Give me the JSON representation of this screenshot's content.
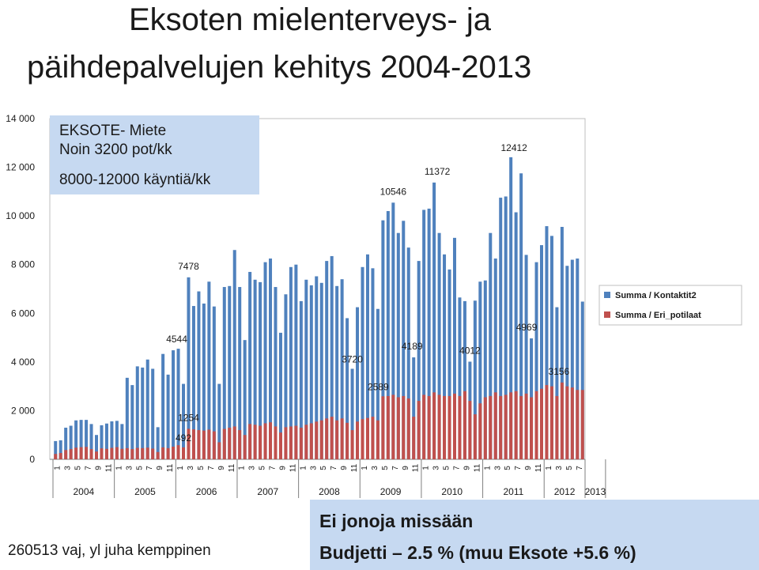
{
  "title": {
    "line1": "Eksoten mielenterveys- ja",
    "line2": "päihdepalvelujen kehitys 2004-2013"
  },
  "callout": {
    "line1": "EKSOTE- Miete",
    "line2": "Noin 3200 pot/kk",
    "line3": "8000-12000 käyntiä/kk"
  },
  "footer": {
    "left": "260513 vaj, yl juha kemppinen",
    "box_line1": "Ei jonoja missään",
    "box_line2": "Budjetti – 2.5 % (muu Eksote +5.6 %)"
  },
  "chart_data": {
    "type": "bar",
    "ylim": [
      0,
      14000
    ],
    "yticks": [
      "0",
      "2 000",
      "4 000",
      "6 000",
      "8 000",
      "10 000",
      "12 000",
      "14 000"
    ],
    "grid": false,
    "legend_position": "right",
    "years": [
      "2004",
      "2005",
      "2006",
      "2007",
      "2008",
      "2009",
      "2010",
      "2011",
      "2012",
      "2013"
    ],
    "month_labels": [
      "1",
      "3",
      "5",
      "7",
      "9",
      "11"
    ],
    "colors": {
      "series1": "#4f81bd",
      "series2": "#c0504d"
    },
    "series": [
      {
        "name": "Summa / Kontaktit2",
        "values": [
          750,
          780,
          1300,
          1380,
          1600,
          1620,
          1620,
          1450,
          1000,
          1400,
          1470,
          1560,
          1580,
          1450,
          3350,
          3050,
          3820,
          3770,
          4100,
          3720,
          1320,
          4330,
          3480,
          4480,
          4544,
          3100,
          7478,
          6300,
          6900,
          6400,
          7300,
          6280,
          3100,
          7080,
          7120,
          8600,
          7080,
          4900,
          7700,
          7380,
          7280,
          8100,
          8250,
          7080,
          5200,
          6780,
          7900,
          8000,
          6500,
          7380,
          7150,
          7520,
          7250,
          8150,
          8350,
          7120,
          7400,
          5800,
          3720,
          6250,
          7900,
          8420,
          7850,
          6180,
          9820,
          10200,
          10546,
          9300,
          9800,
          8700,
          4189,
          8150,
          10250,
          10300,
          11372,
          9300,
          8420,
          7800,
          9100,
          6650,
          6500,
          4012,
          6520,
          7300,
          7350,
          9300,
          8250,
          10750,
          10800,
          12412,
          10150,
          11750,
          8400,
          4969,
          8100,
          8800,
          9580,
          9180,
          6250,
          9550,
          7950,
          8200,
          8250,
          6480
        ]
      },
      {
        "name": "Summa / Eri_potilaat",
        "values": [
          220,
          260,
          380,
          420,
          480,
          500,
          510,
          420,
          320,
          450,
          430,
          470,
          500,
          430,
          460,
          420,
          470,
          460,
          480,
          440,
          300,
          490,
          460,
          520,
          580,
          492,
          1254,
          1230,
          1200,
          1180,
          1220,
          1150,
          700,
          1250,
          1300,
          1350,
          1200,
          1000,
          1450,
          1420,
          1380,
          1480,
          1520,
          1350,
          1100,
          1320,
          1350,
          1380,
          1300,
          1420,
          1480,
          1550,
          1600,
          1680,
          1750,
          1600,
          1680,
          1500,
          1200,
          1550,
          1650,
          1700,
          1750,
          1600,
          2589,
          2600,
          2650,
          2550,
          2600,
          2500,
          1750,
          2400,
          2650,
          2600,
          2750,
          2650,
          2600,
          2600,
          2700,
          2600,
          2800,
          2400,
          1850,
          2300,
          2550,
          2600,
          2750,
          2600,
          2650,
          2750,
          2800,
          2600,
          2700,
          2550,
          2800,
          2900,
          3050,
          3000,
          2600,
          3156,
          3000,
          2950,
          2850,
          2850
        ]
      }
    ],
    "annotations": [
      {
        "index": 24,
        "text": "4544"
      },
      {
        "index": 26,
        "text": "7478"
      },
      {
        "index": 25,
        "text": "492"
      },
      {
        "index": 26,
        "text": "1254"
      },
      {
        "index": 58,
        "text": "3720"
      },
      {
        "index": 64,
        "text": "2589"
      },
      {
        "index": 66,
        "text": "10546"
      },
      {
        "index": 70,
        "text": "4189"
      },
      {
        "index": 74,
        "text": "11372"
      },
      {
        "index": 81,
        "text": "4012"
      },
      {
        "index": 89,
        "text": "12412"
      },
      {
        "index": 93,
        "text": "4969"
      },
      {
        "index": 99,
        "text": "3156"
      }
    ]
  }
}
